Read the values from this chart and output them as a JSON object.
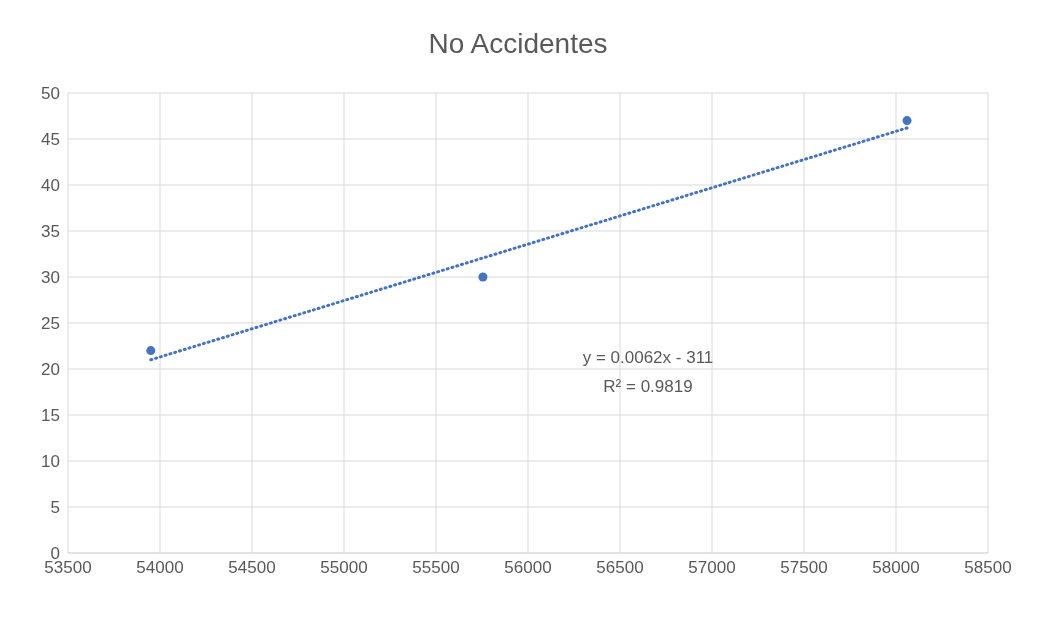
{
  "chart_data": {
    "type": "scatter",
    "title": "No Accidentes",
    "xlim": [
      53500,
      58500
    ],
    "xticks": [
      53500,
      54000,
      54500,
      55000,
      55500,
      56000,
      56500,
      57000,
      57500,
      58000,
      58500
    ],
    "ylim": [
      0,
      50
    ],
    "yticks": [
      0,
      5,
      10,
      15,
      20,
      25,
      30,
      35,
      40,
      45,
      50
    ],
    "grid": true,
    "series": [
      {
        "color": "#4472c4",
        "marker": "circle",
        "x": [
          53950,
          55755,
          58060
        ],
        "values": [
          22,
          30,
          47
        ]
      },
      {
        "type": "line",
        "color": "#4472c4",
        "line_style": "dotted",
        "x": [
          53950,
          58060
        ],
        "values": [
          21,
          46.2
        ]
      }
    ],
    "annotations": [
      "y = 0.0062x - 311",
      "R² = 0.9819"
    ]
  }
}
